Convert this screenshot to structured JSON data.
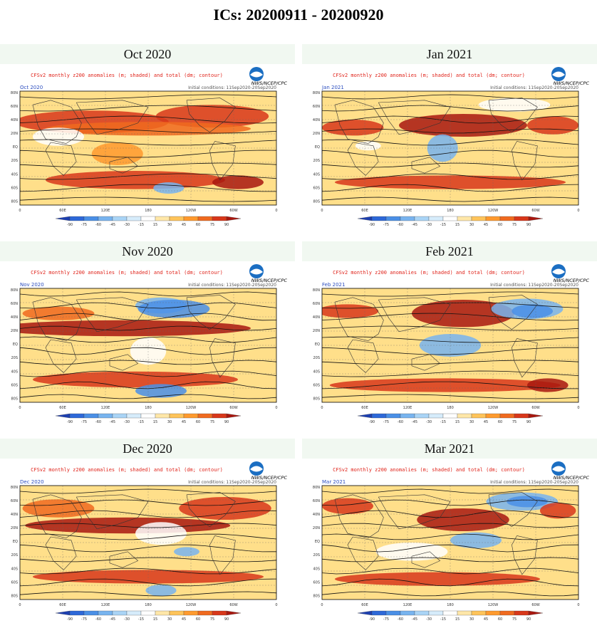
{
  "page": {
    "title": "ICs: 20200911 - 20200920"
  },
  "common": {
    "map_title": "CFSv2 monthly z200 anomalies (m; shaded) and total (dm; contour)",
    "agency": "NWS/NCEP/CPC",
    "ic_text": "Initial conditions: 11Sep2020-20Sep2020",
    "lat_labels": [
      "80N",
      "60N",
      "40N",
      "20N",
      "EQ",
      "20S",
      "40S",
      "60S",
      "80S"
    ],
    "lon_labels": [
      "0",
      "60E",
      "120E",
      "180",
      "120W",
      "60W",
      "0"
    ],
    "colorbar_values": [
      "-90",
      "-75",
      "-60",
      "-45",
      "-30",
      "-15",
      "15",
      "30",
      "45",
      "60",
      "75",
      "90"
    ],
    "colorbar_colors": [
      "#1d3fb0",
      "#2d68d8",
      "#4a8fe6",
      "#78b4ef",
      "#a9d4f6",
      "#d6ecfb",
      "#ffffff",
      "#ffe7a8",
      "#ffc45a",
      "#ff9a2e",
      "#f06a1f",
      "#d8371a",
      "#a8170f"
    ]
  },
  "panels": [
    {
      "header": "Oct 2020",
      "corner": "Oct 2020"
    },
    {
      "header": "Jan 2021",
      "corner": "Jan 2021"
    },
    {
      "header": "Nov 2020",
      "corner": "Nov 2020"
    },
    {
      "header": "Feb 2021",
      "corner": "Feb 2021"
    },
    {
      "header": "Dec 2020",
      "corner": "Dec 2020"
    },
    {
      "header": "Mar 2021",
      "corner": "Mar 2021"
    }
  ]
}
